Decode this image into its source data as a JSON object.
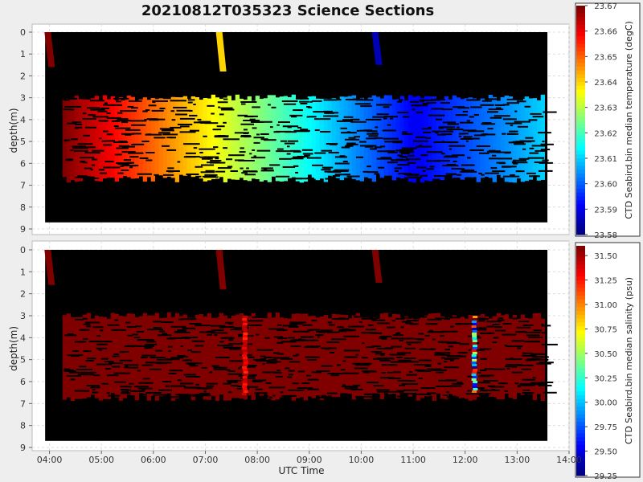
{
  "chart_data": [
    {
      "type": "heatmap",
      "title": "20210812T035323 Science Sections",
      "ylabel": "depth(m)",
      "yticks": [
        "0",
        "1",
        "2",
        "3",
        "4",
        "5",
        "6",
        "7",
        "8",
        "9"
      ],
      "ylim": [
        9,
        0
      ],
      "x_range": [
        "03:40",
        "14:00"
      ],
      "grid": true,
      "colorbar": {
        "label": "CTD Seabird.bin median temperature (degC)",
        "min": 23.58,
        "max": 23.67,
        "ticks": [
          "23.67",
          "23.66",
          "23.65",
          "23.64",
          "23.63",
          "23.62",
          "23.61",
          "23.60",
          "23.59",
          "23.58"
        ],
        "colormap": "jet"
      },
      "data_extent": {
        "x": [
          "03:55",
          "13:35"
        ],
        "depth": [
          0,
          8.7
        ]
      },
      "main_layer": {
        "depth": [
          3.0,
          6.7
        ],
        "x": [
          "04:15",
          "13:30"
        ],
        "trend": "warm (23.67) at 04:15 decreasing to cool (23.59) near 11:00, ~23.61 at 13:30"
      },
      "profiles": [
        {
          "time": "03:57",
          "depth": [
            0,
            1.6
          ],
          "value": 23.67
        },
        {
          "time": "07:15",
          "depth": [
            0,
            1.8
          ],
          "value": 23.64
        },
        {
          "time": "10:15",
          "depth": [
            0,
            1.5
          ],
          "value": 23.585
        }
      ]
    },
    {
      "type": "heatmap",
      "title": "",
      "xlabel": "UTC Time",
      "ylabel": "depth(m)",
      "xticks": [
        "04:00",
        "05:00",
        "06:00",
        "07:00",
        "08:00",
        "09:00",
        "10:00",
        "11:00",
        "12:00",
        "13:00",
        "14:00"
      ],
      "yticks": [
        "0",
        "1",
        "2",
        "3",
        "4",
        "5",
        "6",
        "7",
        "8",
        "9"
      ],
      "ylim": [
        9,
        0
      ],
      "x_range": [
        "03:40",
        "14:00"
      ],
      "grid": true,
      "colorbar": {
        "label": "CTD Seabird.bin median salinity (psu)",
        "min": 29.25,
        "max": 31.6,
        "ticks": [
          "31.50",
          "31.25",
          "31.00",
          "30.75",
          "30.50",
          "30.25",
          "30.00",
          "29.75",
          "29.50",
          "29.25"
        ],
        "colormap": "jet"
      },
      "data_extent": {
        "x": [
          "03:55",
          "13:35"
        ],
        "depth": [
          0,
          8.7
        ]
      },
      "main_layer": {
        "depth": [
          3.0,
          6.7
        ],
        "x": [
          "04:15",
          "13:30"
        ],
        "value": 31.6
      },
      "anomalies": [
        {
          "time": "07:45",
          "depth": [
            3.0,
            6.6
          ],
          "value_range": [
            31.2,
            31.5
          ]
        },
        {
          "time": "12:10",
          "depth": [
            3.0,
            6.5
          ],
          "value_range": [
            29.3,
            31.6
          ]
        }
      ],
      "profiles": [
        {
          "time": "03:57",
          "depth": [
            0,
            1.6
          ],
          "value": 31.6
        },
        {
          "time": "07:15",
          "depth": [
            0,
            1.8
          ],
          "value": 31.6
        },
        {
          "time": "10:15",
          "depth": [
            0,
            1.5
          ],
          "value": 31.6
        }
      ]
    }
  ]
}
